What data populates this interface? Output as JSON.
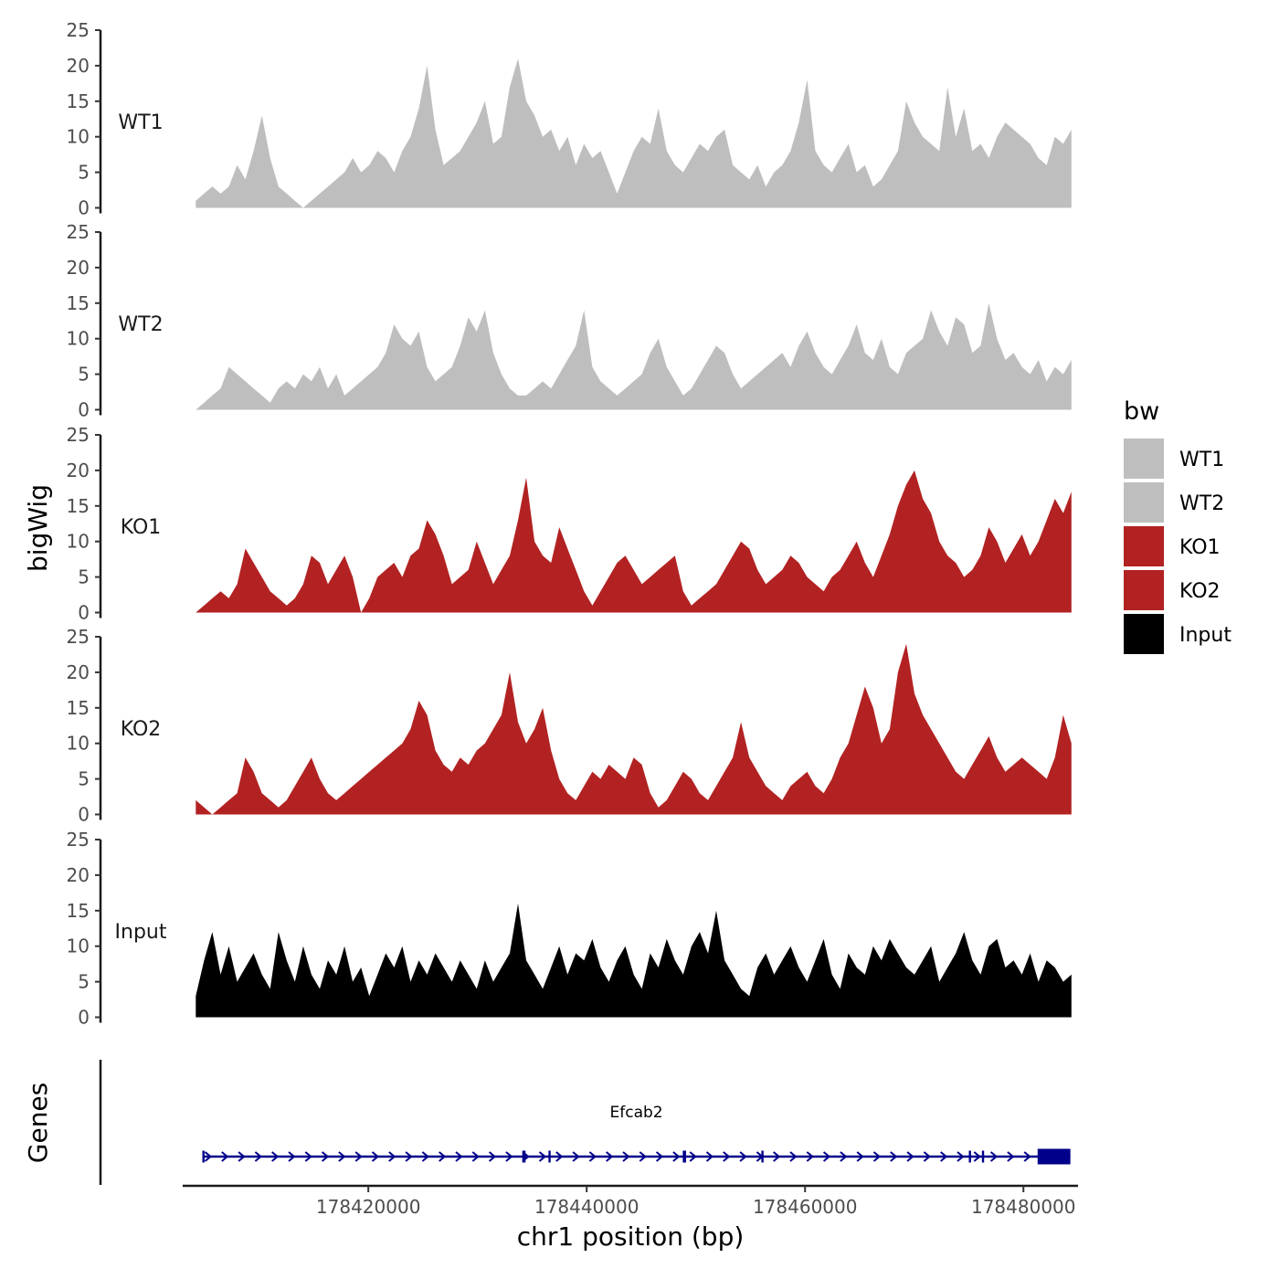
{
  "chart_data": {
    "type": "area",
    "ylabel": "bigWig",
    "xlabel": "chr1 position (bp)",
    "chromosome": "chr1",
    "xlim": [
      178403000,
      178485000
    ],
    "ylim": [
      0,
      25
    ],
    "yticks": [
      "0",
      "5",
      "10",
      "15",
      "20",
      "25"
    ],
    "xticks": [
      {
        "value": 178420000,
        "label": "178420000"
      },
      {
        "value": 178440000,
        "label": "178440000"
      },
      {
        "value": 178460000,
        "label": "178460000"
      },
      {
        "value": 178480000,
        "label": "178480000"
      }
    ],
    "series": [
      {
        "name": "WT1",
        "color": "#bebebe",
        "x_start": 178404200,
        "x_end": 178484400,
        "values": [
          1,
          2,
          3,
          2,
          3,
          6,
          4,
          8,
          13,
          7,
          3,
          2,
          1,
          0,
          1,
          2,
          3,
          4,
          5,
          7,
          5,
          6,
          8,
          7,
          5,
          8,
          10,
          14,
          20,
          11,
          6,
          7,
          8,
          10,
          12,
          15,
          9,
          10,
          17,
          21,
          15,
          13,
          10,
          11,
          8,
          10,
          6,
          9,
          7,
          8,
          5,
          2,
          5,
          8,
          10,
          9,
          14,
          8,
          6,
          5,
          7,
          9,
          8,
          10,
          11,
          6,
          5,
          4,
          6,
          3,
          5,
          6,
          8,
          12,
          18,
          8,
          6,
          5,
          7,
          9,
          5,
          6,
          3,
          4,
          6,
          8,
          15,
          12,
          10,
          9,
          8,
          17,
          10,
          14,
          8,
          9,
          7,
          10,
          12,
          11,
          10,
          9,
          7,
          6,
          10,
          9,
          11
        ]
      },
      {
        "name": "WT2",
        "color": "#bebebe",
        "x_start": 178404200,
        "x_end": 178484400,
        "values": [
          0,
          1,
          2,
          3,
          6,
          5,
          4,
          3,
          2,
          1,
          3,
          4,
          3,
          5,
          4,
          6,
          3,
          5,
          2,
          3,
          4,
          5,
          6,
          8,
          12,
          10,
          9,
          11,
          6,
          4,
          5,
          6,
          9,
          13,
          11,
          14,
          8,
          5,
          3,
          2,
          2,
          3,
          4,
          3,
          5,
          7,
          9,
          14,
          6,
          4,
          3,
          2,
          3,
          4,
          5,
          8,
          10,
          6,
          4,
          2,
          3,
          5,
          7,
          9,
          8,
          5,
          3,
          4,
          5,
          6,
          7,
          8,
          6,
          9,
          11,
          8,
          6,
          5,
          7,
          9,
          12,
          8,
          7,
          10,
          6,
          5,
          8,
          9,
          10,
          14,
          11,
          9,
          13,
          12,
          8,
          9,
          15,
          10,
          7,
          8,
          6,
          5,
          7,
          4,
          6,
          5,
          7
        ]
      },
      {
        "name": "KO1",
        "color": "#b22222",
        "x_start": 178404200,
        "x_end": 178484400,
        "values": [
          0,
          1,
          2,
          3,
          2,
          4,
          9,
          7,
          5,
          3,
          2,
          1,
          2,
          4,
          8,
          7,
          4,
          6,
          8,
          5,
          0,
          2,
          5,
          6,
          7,
          5,
          8,
          9,
          13,
          11,
          8,
          4,
          5,
          6,
          10,
          7,
          4,
          6,
          8,
          13,
          19,
          10,
          8,
          7,
          12,
          9,
          6,
          3,
          1,
          3,
          5,
          7,
          8,
          6,
          4,
          5,
          6,
          7,
          8,
          3,
          1,
          2,
          3,
          4,
          6,
          8,
          10,
          9,
          6,
          4,
          5,
          6,
          8,
          7,
          5,
          4,
          3,
          5,
          6,
          8,
          10,
          7,
          5,
          8,
          11,
          15,
          18,
          20,
          16,
          14,
          10,
          8,
          7,
          5,
          6,
          8,
          12,
          10,
          7,
          9,
          11,
          8,
          10,
          13,
          16,
          14,
          17
        ]
      },
      {
        "name": "KO2",
        "color": "#b22222",
        "x_start": 178404200,
        "x_end": 178484400,
        "values": [
          2,
          1,
          0,
          1,
          2,
          3,
          8,
          6,
          3,
          2,
          1,
          2,
          4,
          6,
          8,
          5,
          3,
          2,
          3,
          4,
          5,
          6,
          7,
          8,
          9,
          10,
          12,
          16,
          14,
          9,
          7,
          6,
          8,
          7,
          9,
          10,
          12,
          14,
          20,
          13,
          10,
          12,
          15,
          9,
          5,
          3,
          2,
          4,
          6,
          5,
          7,
          6,
          5,
          8,
          7,
          3,
          1,
          2,
          4,
          6,
          5,
          3,
          2,
          4,
          6,
          8,
          13,
          8,
          6,
          4,
          3,
          2,
          4,
          5,
          6,
          4,
          3,
          5,
          8,
          10,
          14,
          18,
          15,
          10,
          12,
          20,
          24,
          17,
          14,
          12,
          10,
          8,
          6,
          5,
          7,
          9,
          11,
          8,
          6,
          7,
          8,
          7,
          6,
          5,
          8,
          14,
          10
        ]
      },
      {
        "name": "Input",
        "color": "#000000",
        "x_start": 178404200,
        "x_end": 178484400,
        "values": [
          3,
          8,
          12,
          6,
          10,
          5,
          7,
          9,
          6,
          4,
          12,
          8,
          5,
          10,
          6,
          4,
          8,
          6,
          10,
          5,
          7,
          3,
          6,
          9,
          7,
          10,
          5,
          8,
          6,
          9,
          7,
          5,
          8,
          6,
          4,
          8,
          5,
          7,
          9,
          16,
          8,
          6,
          4,
          7,
          10,
          6,
          9,
          8,
          11,
          7,
          5,
          8,
          10,
          6,
          4,
          9,
          7,
          11,
          8,
          6,
          10,
          12,
          9,
          15,
          8,
          6,
          4,
          3,
          7,
          9,
          6,
          8,
          10,
          7,
          5,
          8,
          11,
          6,
          4,
          9,
          7,
          6,
          10,
          8,
          11,
          9,
          7,
          6,
          8,
          10,
          5,
          7,
          9,
          12,
          8,
          6,
          10,
          11,
          7,
          8,
          6,
          9,
          5,
          8,
          7,
          5,
          6
        ]
      }
    ],
    "legend": {
      "title": "bw",
      "position": "right",
      "items": [
        {
          "label": "WT1",
          "color": "#bebebe"
        },
        {
          "label": "WT2",
          "color": "#bebebe"
        },
        {
          "label": "KO1",
          "color": "#b22222"
        },
        {
          "label": "KO2",
          "color": "#b22222"
        },
        {
          "label": "Input",
          "color": "#000000"
        }
      ]
    },
    "genes_track": {
      "label": "Genes",
      "genes": [
        {
          "name": "Efcab2",
          "strand": "+",
          "start": 178404800,
          "end": 178484300,
          "color": "#00008b",
          "exons": [
            [
              178404800,
              178405000
            ],
            [
              178434100,
              178434400
            ],
            [
              178436500,
              178436700
            ],
            [
              178448800,
              178449100
            ],
            [
              178456000,
              178456200
            ],
            [
              178475000,
              178475200
            ],
            [
              178476200,
              178476400
            ],
            [
              178481300,
              178484300
            ]
          ]
        }
      ]
    }
  }
}
